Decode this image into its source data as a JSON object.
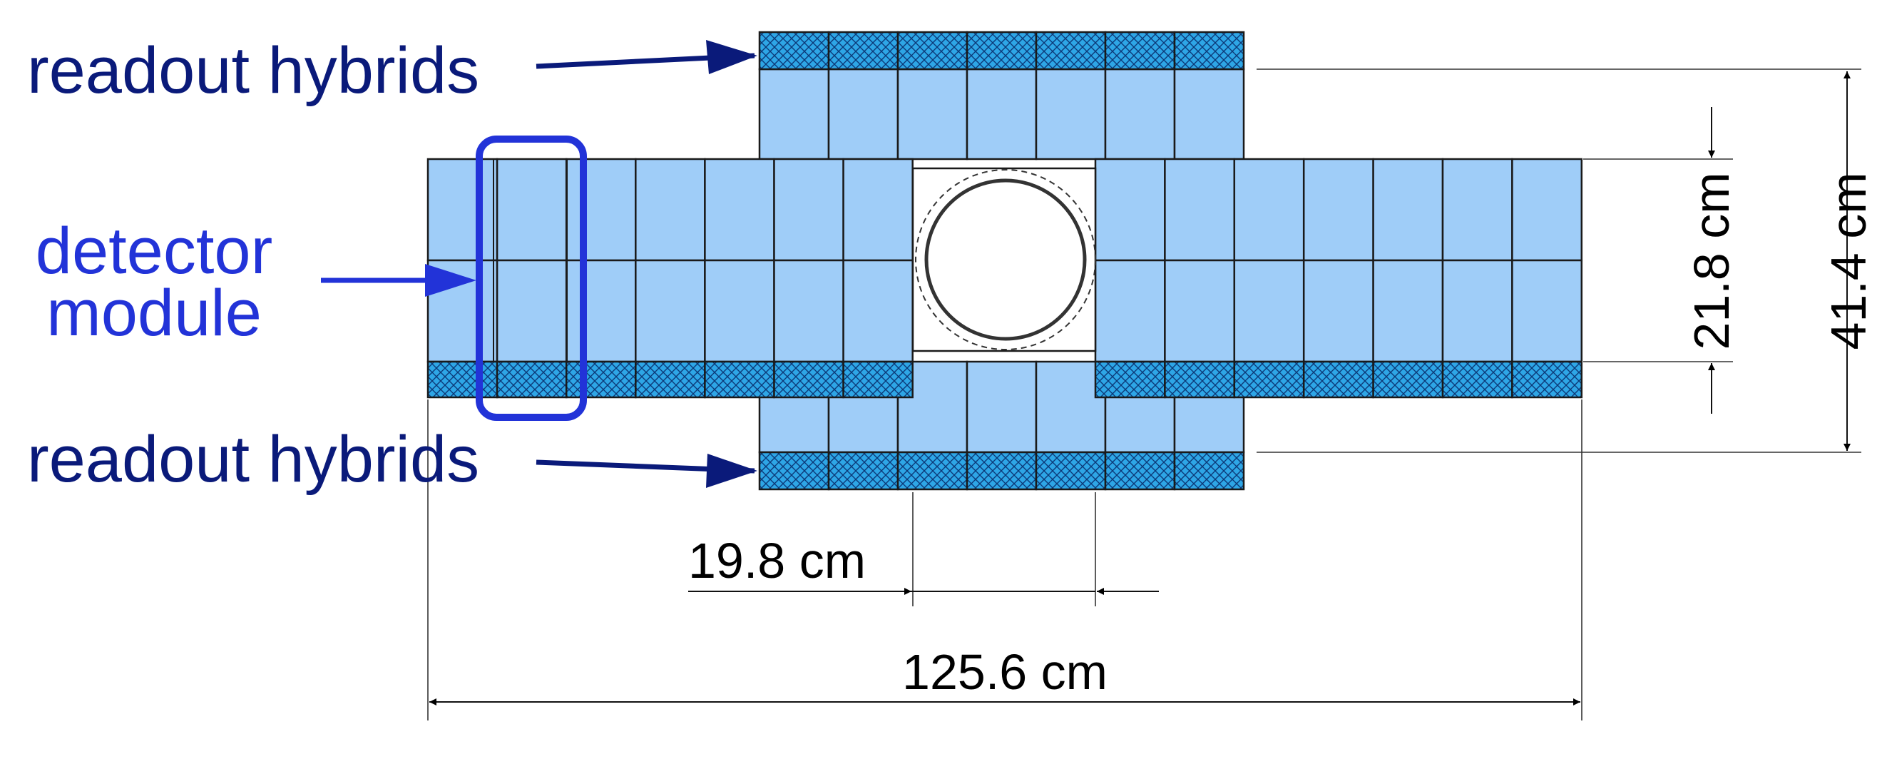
{
  "labels": {
    "hybrids_top": "readout hybrids",
    "hybrids_bottom": "readout hybrids",
    "module_line1": "detector",
    "module_line2": "module"
  },
  "dimensions": {
    "gap_width": "19.8 cm",
    "total_width": "125.6 cm",
    "inner_height": "21.8 cm",
    "outer_height": "41.4 cm"
  },
  "colors": {
    "module_fill": "#9fcdf8",
    "hybrid_fill": "#2ea6e6",
    "label_dark": "#0a1a7a",
    "label_blue": "#2233d8",
    "highlight": "#2233d8"
  },
  "structure": {
    "left_arm_columns": 7,
    "right_arm_columns": 7,
    "top_column_count": 7,
    "bottom_column_count": 7
  }
}
